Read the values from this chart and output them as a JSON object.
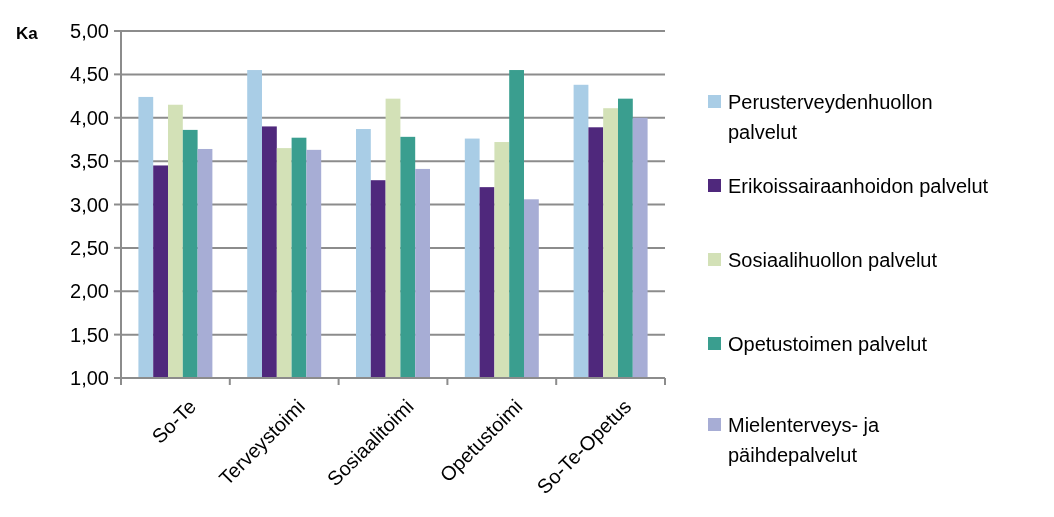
{
  "chart_data": {
    "type": "bar",
    "ylabel": "Ka",
    "categories": [
      "So-Te",
      "Terveystoimi",
      "Sosiaalitoimi",
      "Opetustoimi",
      "So-Te-Opetus"
    ],
    "series": [
      {
        "name": "Perusterveydenhuollon palvelut",
        "color": "#a9cde6",
        "values": [
          4.24,
          4.55,
          3.87,
          3.76,
          4.38
        ]
      },
      {
        "name": "Erikoissairaanhoidon palvelut",
        "color": "#4f287c",
        "values": [
          3.45,
          3.9,
          3.28,
          3.2,
          3.89
        ]
      },
      {
        "name": "Sosiaalihuollon palvelut",
        "color": "#d3e1b7",
        "values": [
          4.15,
          3.65,
          4.22,
          3.72,
          4.11
        ]
      },
      {
        "name": "Opetustoimen palvelut",
        "color": "#3a9e8f",
        "values": [
          3.86,
          3.77,
          3.78,
          4.55,
          4.22
        ]
      },
      {
        "name": "Mielenterveys- ja päihdepalvelut",
        "color": "#a7add5",
        "values": [
          3.64,
          3.63,
          3.41,
          3.06,
          4.0
        ]
      }
    ],
    "ylim": [
      1,
      5
    ],
    "yticks": [
      {
        "value": 1,
        "label": "1,00"
      },
      {
        "value": 1.5,
        "label": "1,50"
      },
      {
        "value": 2,
        "label": "2,00"
      },
      {
        "value": 2.5,
        "label": "2,50"
      },
      {
        "value": 3,
        "label": "3,00"
      },
      {
        "value": 3.5,
        "label": "3,50"
      },
      {
        "value": 4,
        "label": "4,00"
      },
      {
        "value": 4.5,
        "label": "4,50"
      },
      {
        "value": 5,
        "label": "5,00"
      }
    ],
    "grid": "y",
    "legend": "right"
  }
}
